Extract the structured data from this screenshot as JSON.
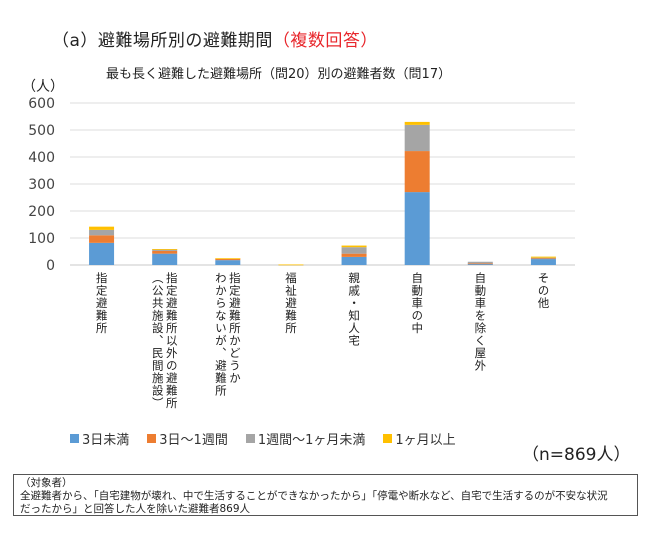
{
  "heading": {
    "prefix": "（a）避難場所別の避難期間",
    "highlight": "（複数回答）",
    "highlight_color": "#e8262b"
  },
  "chart_data": {
    "type": "bar",
    "stacked": true,
    "title": "最も長く避難した避難場所（問20）別の避難者数（問17）",
    "ylabel": "（人）",
    "xlabel": "",
    "ylim": [
      0,
      600
    ],
    "yticks": [
      0,
      100,
      200,
      300,
      400,
      500,
      600
    ],
    "grid": true,
    "legend_position": "bottom",
    "categories": [
      "指定避難所",
      "指定避難所以外の避難所（公共施設、民間施設）",
      "指定避難所かどうかわからないが、避難所",
      "福祉避難所",
      "親戚・知人宅",
      "自動車の中",
      "自動車を除く屋外",
      "その他"
    ],
    "category_lines": [
      [
        "指定避難所"
      ],
      [
        "指定避難所以外の避難所",
        "（公共施設、民間施設）"
      ],
      [
        "指定避難所かどうか",
        "わからないが、避難所"
      ],
      [
        "福祉避難所"
      ],
      [
        "親戚・知人宅"
      ],
      [
        "自動車の中"
      ],
      [
        "自動車を除く屋外"
      ],
      [
        "その他"
      ]
    ],
    "series": [
      {
        "name": "3日未満",
        "color": "#5b9bd5",
        "values": [
          82,
          42,
          18,
          0,
          30,
          270,
          5,
          22
        ]
      },
      {
        "name": "3日～1週間",
        "color": "#ed7d31",
        "values": [
          28,
          10,
          6,
          0,
          12,
          152,
          1,
          3
        ]
      },
      {
        "name": "1週間～1ヶ月未満",
        "color": "#a5a5a5",
        "values": [
          20,
          6,
          0,
          1,
          24,
          97,
          6,
          2
        ]
      },
      {
        "name": "1ヶ月以上",
        "color": "#ffc000",
        "values": [
          12,
          1,
          1,
          1,
          6,
          11,
          0,
          4
        ]
      }
    ]
  },
  "sample": "（n=869人）",
  "note": {
    "title": "（対象者）",
    "line1": "全避難者から、「自宅建物が壊れ、中で生活することができなかったから」「停電や断水など、自宅で生活するのが不安な状況",
    "line2": "だったから」と回答した人を除いた避難者869人"
  }
}
